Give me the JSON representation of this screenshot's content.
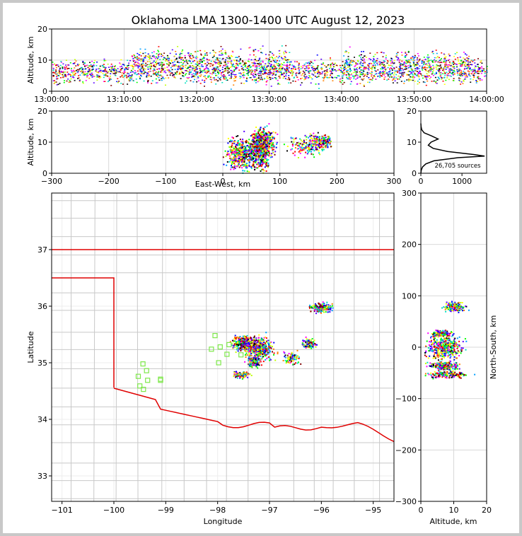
{
  "title": "Oklahoma LMA 1300-1400 UTC August 12, 2023",
  "colors": {
    "grid": "#d9d9d9",
    "county_lines": "#c8c8c8",
    "state_border": "#e00000",
    "station_marker": "#7ee84a",
    "density_palette": [
      "#ff00ff",
      "#5a00ff",
      "#0000ff",
      "#00a0ff",
      "#00e0c0",
      "#00ff00",
      "#c0ff00",
      "#ffff00",
      "#ff8000",
      "#ff0000",
      "#800000",
      "#000000"
    ]
  },
  "chart_data": [
    {
      "panel": "altitude-time",
      "type": "heatmap",
      "ylabel": "Altitude, km",
      "ylim": [
        0,
        20
      ],
      "yticks": [
        "0",
        "10",
        "20"
      ],
      "xticks": [
        "13:00:00",
        "13:10:00",
        "13:20:00",
        "13:30:00",
        "13:40:00",
        "13:50:00",
        "14:00:00"
      ],
      "xlim_minutes": [
        0,
        60
      ],
      "activity": [
        {
          "t_start_min": 0,
          "t_end_min": 60,
          "alt_center_km": 6.5,
          "alt_spread_km": 1.8,
          "density": 0.8
        },
        {
          "t_start_min": 11,
          "t_end_min": 26,
          "alt_center_km": 10.5,
          "alt_spread_km": 1.5,
          "density": 0.5
        },
        {
          "t_start_min": 27,
          "t_end_min": 33,
          "alt_center_km": 9.5,
          "alt_spread_km": 2.5,
          "density": 0.6
        },
        {
          "t_start_min": 40,
          "t_end_min": 58,
          "alt_center_km": 10.0,
          "alt_spread_km": 1.5,
          "density": 0.4
        }
      ]
    },
    {
      "panel": "altitude-east-west",
      "type": "heatmap",
      "xlabel": "East-West, km",
      "ylabel": "Altitude, km",
      "xlim": [
        -300,
        300
      ],
      "ylim": [
        0,
        20
      ],
      "xticks": [
        "−300",
        "−200",
        "−100",
        "0",
        "100",
        "200",
        "300"
      ],
      "yticks": [
        "0",
        "10",
        "20"
      ],
      "clusters": [
        {
          "x_km": 30,
          "alt_km": 6.5,
          "sx": 12,
          "sa": 2.5,
          "density": 1.0
        },
        {
          "x_km": 65,
          "alt_km": 7.5,
          "sx": 8,
          "sa": 3.0,
          "density": 1.0
        },
        {
          "x_km": 70,
          "alt_km": 10.5,
          "sx": 10,
          "sa": 2.0,
          "density": 0.8
        },
        {
          "x_km": 140,
          "alt_km": 9.0,
          "sx": 15,
          "sa": 1.5,
          "density": 0.3
        },
        {
          "x_km": 170,
          "alt_km": 10.5,
          "sx": 10,
          "sa": 1.2,
          "density": 0.4
        }
      ]
    },
    {
      "panel": "altitude-histogram",
      "type": "line",
      "xlim": [
        0,
        1600
      ],
      "xticks": [
        "0",
        "1000"
      ],
      "ylim": [
        0,
        20
      ],
      "yticks": [
        "0",
        "10",
        "20"
      ],
      "annotation": "26,705 sources",
      "profile": [
        {
          "alt_km": 0,
          "count": 0
        },
        {
          "alt_km": 1,
          "count": 10
        },
        {
          "alt_km": 2,
          "count": 40
        },
        {
          "alt_km": 3,
          "count": 120
        },
        {
          "alt_km": 4,
          "count": 320
        },
        {
          "alt_km": 5,
          "count": 900
        },
        {
          "alt_km": 5.5,
          "count": 1550
        },
        {
          "alt_km": 6,
          "count": 1300
        },
        {
          "alt_km": 7,
          "count": 650
        },
        {
          "alt_km": 8,
          "count": 300
        },
        {
          "alt_km": 9,
          "count": 180
        },
        {
          "alt_km": 10,
          "count": 250
        },
        {
          "alt_km": 11,
          "count": 420
        },
        {
          "alt_km": 12,
          "count": 260
        },
        {
          "alt_km": 13,
          "count": 80
        },
        {
          "alt_km": 14,
          "count": 20
        },
        {
          "alt_km": 15,
          "count": 5
        },
        {
          "alt_km": 16,
          "count": 0
        }
      ]
    },
    {
      "panel": "plan-view-map",
      "type": "scatter",
      "xlabel": "Longitude",
      "ylabel": "Latitude",
      "xlim": [
        -101.2,
        -94.6
      ],
      "ylim": [
        32.55,
        38.0
      ],
      "xticks": [
        "−101",
        "−100",
        "−99",
        "−98",
        "−97",
        "−96",
        "−95"
      ],
      "yticks": [
        "33",
        "34",
        "35",
        "36",
        "37"
      ],
      "clusters": [
        {
          "lon": -97.2,
          "lat": 35.25,
          "slon": 0.12,
          "slat": 0.1,
          "density": 1.0
        },
        {
          "lon": -97.5,
          "lat": 35.35,
          "slon": 0.1,
          "slat": 0.06,
          "density": 0.9
        },
        {
          "lon": -96.0,
          "lat": 35.98,
          "slon": 0.1,
          "slat": 0.04,
          "density": 0.5
        },
        {
          "lon": -97.3,
          "lat": 35.02,
          "slon": 0.06,
          "slat": 0.04,
          "density": 0.4
        },
        {
          "lon": -97.55,
          "lat": 34.8,
          "slon": 0.07,
          "slat": 0.03,
          "density": 0.3
        },
        {
          "lon": -96.25,
          "lat": 35.35,
          "slon": 0.06,
          "slat": 0.04,
          "density": 0.3
        },
        {
          "lon": -96.6,
          "lat": 35.1,
          "slon": 0.08,
          "slat": 0.06,
          "density": 0.2
        }
      ],
      "stations": [
        {
          "lon": -98.05,
          "lat": 35.48
        },
        {
          "lon": -98.12,
          "lat": 35.24
        },
        {
          "lon": -97.95,
          "lat": 35.28
        },
        {
          "lon": -97.78,
          "lat": 35.32
        },
        {
          "lon": -97.82,
          "lat": 35.15
        },
        {
          "lon": -97.98,
          "lat": 35.0
        },
        {
          "lon": -97.55,
          "lat": 35.14
        },
        {
          "lon": -99.44,
          "lat": 34.98
        },
        {
          "lon": -99.37,
          "lat": 34.86
        },
        {
          "lon": -99.53,
          "lat": 34.76
        },
        {
          "lon": -99.35,
          "lat": 34.69
        },
        {
          "lon": -99.5,
          "lat": 34.59
        },
        {
          "lon": -99.43,
          "lat": 34.53
        },
        {
          "lon": -99.1,
          "lat": 34.71
        },
        {
          "lon": -99.1,
          "lat": 34.69
        }
      ]
    },
    {
      "panel": "north-south-altitude",
      "type": "heatmap",
      "xlabel": "Altitude, km",
      "ylabel": "North-South, km",
      "xlim": [
        0,
        20
      ],
      "ylim": [
        -300,
        300
      ],
      "xticks": [
        "0",
        "10",
        "20"
      ],
      "yticks": [
        "−300",
        "−200",
        "−100",
        "0",
        "100",
        "200",
        "300"
      ],
      "clusters": [
        {
          "alt_km": 7,
          "ns_km": 0,
          "sa": 2.5,
          "sn": 10,
          "density": 1.0
        },
        {
          "alt_km": 10,
          "ns_km": 80,
          "sa": 1.5,
          "sn": 4,
          "density": 0.4
        },
        {
          "alt_km": 7,
          "ns_km": -35,
          "sa": 2.0,
          "sn": 4,
          "density": 0.5
        },
        {
          "alt_km": 8,
          "ns_km": -52,
          "sa": 3.0,
          "sn": 3,
          "density": 0.4
        },
        {
          "alt_km": 6,
          "ns_km": 28,
          "sa": 1.5,
          "sn": 3,
          "density": 0.3
        }
      ]
    }
  ]
}
